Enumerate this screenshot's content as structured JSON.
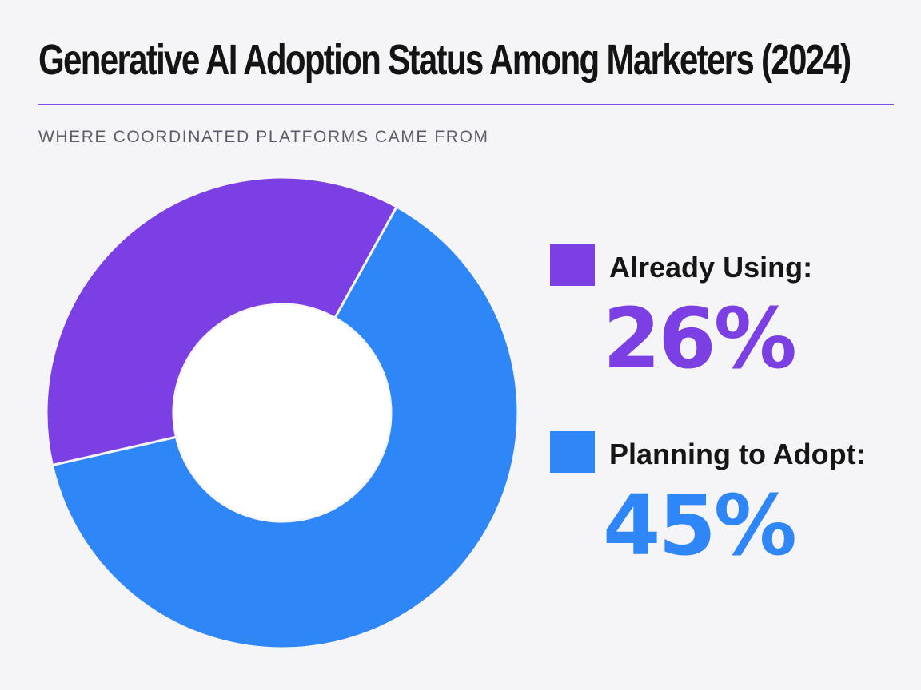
{
  "title": "Generative AI Adoption Status Among Marketers (2024)",
  "subtitle": "WHERE COORDINATED PLATFORMS CAME FROM",
  "colors": {
    "background": "#f5f5f7",
    "rule": "#7a4ce0",
    "already_using": "#7b3fe4",
    "planning_to_adopt": "#2f86f6"
  },
  "legend": [
    {
      "label": "Already Using:",
      "value_text": "26%",
      "color": "#7b3fe4"
    },
    {
      "label": "Planning to Adopt:",
      "value_text": "45%",
      "color": "#2f86f6"
    }
  ],
  "chart_data": {
    "type": "pie",
    "variant": "donut",
    "title": "Generative AI Adoption Status Among Marketers (2024)",
    "subtitle": "WHERE COORDINATED PLATFORMS CAME FROM",
    "categories": [
      "Already Using",
      "Planning to Adopt"
    ],
    "values": [
      26,
      45
    ],
    "unit": "%",
    "colors": [
      "#7b3fe4",
      "#2f86f6"
    ],
    "legend_position": "right"
  }
}
